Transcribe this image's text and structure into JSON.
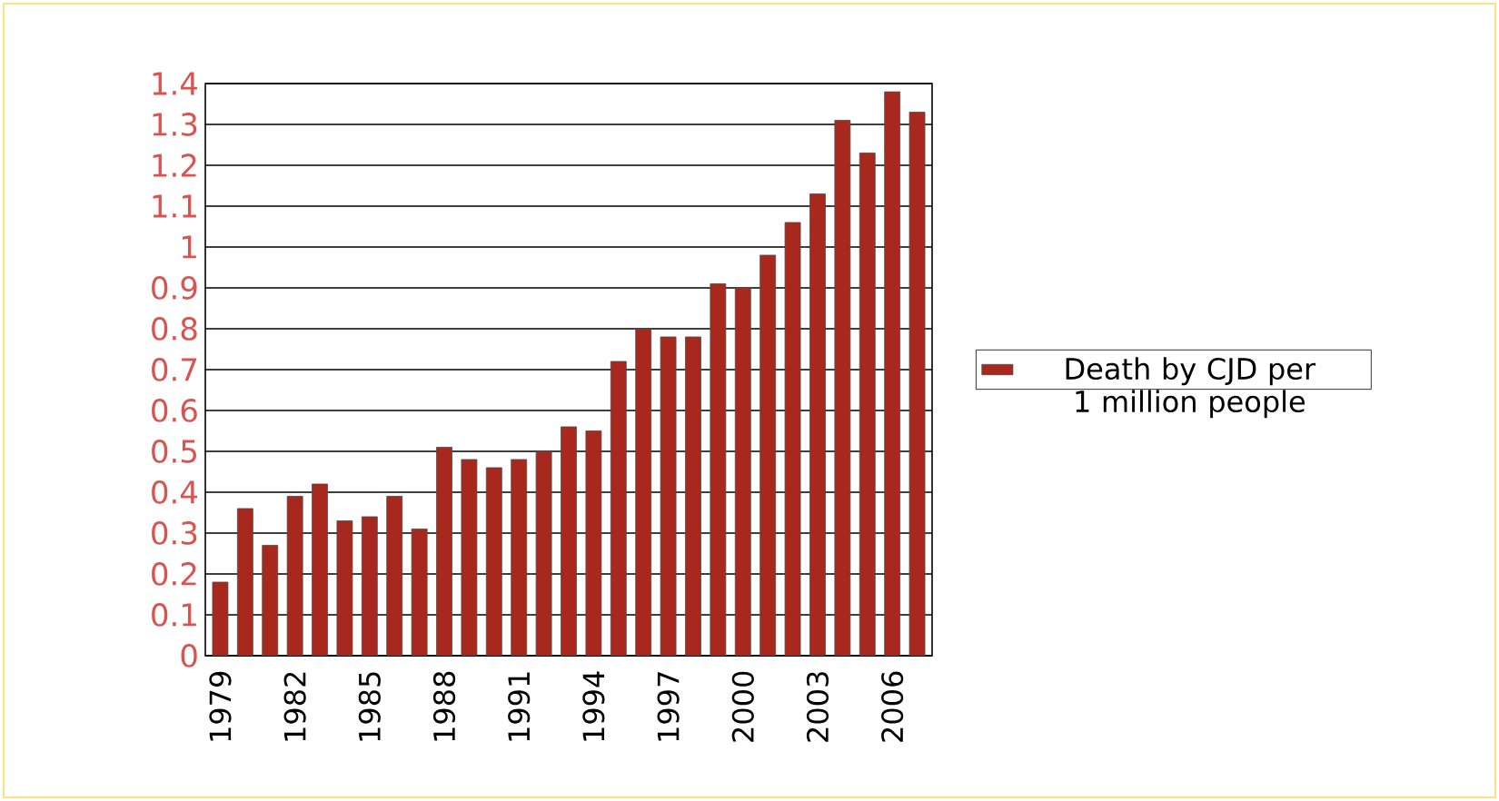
{
  "chart_data": {
    "type": "bar",
    "categories": [
      "1979",
      null,
      null,
      "1982",
      null,
      null,
      "1985",
      null,
      null,
      "1988",
      null,
      null,
      "1991",
      null,
      null,
      "1994",
      null,
      null,
      "1997",
      null,
      null,
      "2000",
      null,
      null,
      "2003",
      null,
      null,
      "2006",
      null
    ],
    "series": [
      {
        "name": "Death by CJD per 1 million people",
        "color": "#a8281e",
        "values": [
          0.18,
          0.36,
          0.27,
          0.39,
          0.42,
          0.33,
          0.34,
          0.39,
          0.31,
          0.51,
          0.48,
          0.46,
          0.48,
          0.5,
          0.56,
          0.55,
          0.72,
          0.8,
          0.78,
          0.78,
          0.91,
          0.9,
          0.98,
          1.06,
          1.13,
          1.31,
          1.23,
          1.38,
          1.33
        ]
      }
    ],
    "ylim": [
      0,
      1.4
    ],
    "yticks": [
      0,
      0.1,
      0.2,
      0.3,
      0.4,
      0.5,
      0.6,
      0.7,
      0.8,
      0.9,
      1,
      1.1,
      1.2,
      1.3,
      1.4
    ],
    "grid": "y",
    "legend": "right"
  }
}
